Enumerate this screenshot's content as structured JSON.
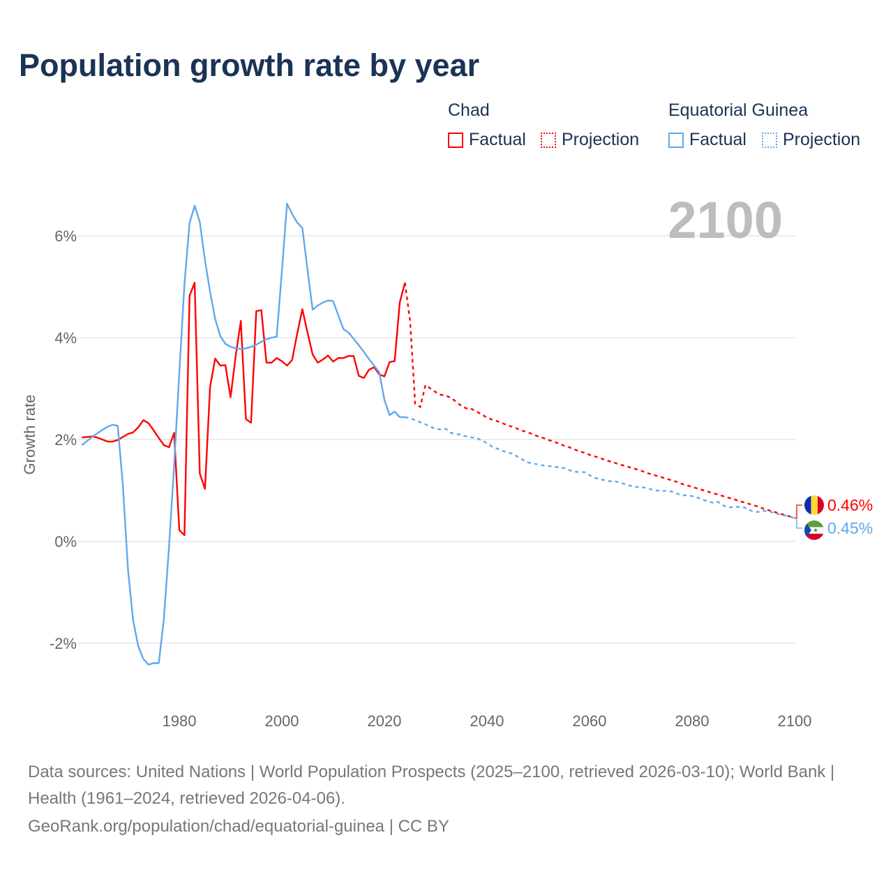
{
  "chart_data": {
    "type": "line",
    "title": "Population growth rate by year",
    "ylabel": "Growth rate",
    "xlabel": "",
    "xlim": [
      1961,
      2100
    ],
    "ylim": [
      -3,
      7
    ],
    "x_ticks": [
      1980,
      2000,
      2020,
      2040,
      2060,
      2080,
      2100
    ],
    "x_tick_labels": [
      "1980",
      "2000",
      "2020",
      "2040",
      "2060",
      "2080",
      "2100"
    ],
    "y_ticks": [
      -2,
      0,
      2,
      4,
      6
    ],
    "y_tick_labels": [
      "-2%",
      "0%",
      "2%",
      "4%",
      "6%"
    ],
    "grid": true,
    "current_year_label": "2100",
    "legend": {
      "placement": "top-right",
      "groups": [
        {
          "name": "Chad",
          "factual": "Factual",
          "projection": "Projection"
        },
        {
          "name": "Equatorial Guinea",
          "factual": "Factual",
          "projection": "Projection"
        }
      ]
    },
    "series": [
      {
        "name": "Chad",
        "color": "#ff0000",
        "end_label": "0.46%",
        "factual_start": 1961,
        "factual": [
          2.04,
          2.05,
          2.06,
          2.04,
          2.0,
          1.96,
          1.96,
          1.99,
          2.05,
          2.11,
          2.14,
          2.24,
          2.38,
          2.32,
          2.18,
          2.03,
          1.89,
          1.85,
          2.13,
          0.22,
          0.12,
          4.82,
          5.08,
          1.33,
          1.03,
          3.03,
          3.59,
          3.45,
          3.46,
          2.83,
          3.65,
          4.33,
          2.4,
          2.33,
          4.52,
          4.54,
          3.51,
          3.51,
          3.6,
          3.54,
          3.45,
          3.56,
          4.08,
          4.56,
          4.1,
          3.67,
          3.51,
          3.57,
          3.65,
          3.53,
          3.6,
          3.6,
          3.64,
          3.64,
          3.25,
          3.21,
          3.37,
          3.42,
          3.28,
          3.24,
          3.52,
          3.54,
          4.69,
          5.08
        ],
        "projection_start": 2024,
        "projection": [
          5.08,
          4.33,
          2.7,
          2.64,
          3.07,
          3.0,
          2.93,
          2.88,
          2.86,
          2.82,
          2.74,
          2.66,
          2.61,
          2.6,
          2.55,
          2.49,
          2.43,
          2.39,
          2.36,
          2.32,
          2.28,
          2.25,
          2.21,
          2.17,
          2.14,
          2.1,
          2.06,
          2.03,
          1.99,
          1.96,
          1.92,
          1.88,
          1.85,
          1.81,
          1.77,
          1.74,
          1.7,
          1.67,
          1.64,
          1.6,
          1.57,
          1.54,
          1.51,
          1.48,
          1.45,
          1.42,
          1.39,
          1.35,
          1.32,
          1.29,
          1.26,
          1.23,
          1.2,
          1.17,
          1.13,
          1.1,
          1.07,
          1.04,
          1.01,
          0.98,
          0.95,
          0.92,
          0.89,
          0.86,
          0.83,
          0.8,
          0.77,
          0.74,
          0.71,
          0.68,
          0.64,
          0.61,
          0.58,
          0.55,
          0.52,
          0.49,
          0.46
        ]
      },
      {
        "name": "Equatorial Guinea",
        "color": "#5fa8ea",
        "end_label": "0.45%",
        "factual_start": 1961,
        "factual": [
          1.89,
          1.97,
          2.05,
          2.12,
          2.19,
          2.25,
          2.29,
          2.27,
          1.1,
          -0.56,
          -1.55,
          -2.06,
          -2.31,
          -2.42,
          -2.39,
          -2.39,
          -1.52,
          -0.1,
          1.5,
          3.3,
          5.05,
          6.25,
          6.59,
          6.27,
          5.52,
          4.9,
          4.37,
          4.03,
          3.88,
          3.82,
          3.79,
          3.78,
          3.79,
          3.82,
          3.86,
          3.92,
          3.97,
          4.0,
          4.02,
          5.3,
          6.63,
          6.43,
          6.26,
          6.15,
          5.33,
          4.55,
          4.63,
          4.69,
          4.73,
          4.72,
          4.44,
          4.17,
          4.1,
          3.98,
          3.85,
          3.72,
          3.58,
          3.45,
          3.32,
          2.78,
          2.48,
          2.55,
          2.44,
          2.44
        ],
        "projection_start": 2024,
        "projection": [
          2.44,
          2.42,
          2.38,
          2.34,
          2.3,
          2.25,
          2.21,
          2.2,
          2.21,
          2.13,
          2.11,
          2.09,
          2.06,
          2.04,
          2.03,
          1.98,
          1.93,
          1.86,
          1.82,
          1.78,
          1.75,
          1.72,
          1.66,
          1.6,
          1.55,
          1.53,
          1.51,
          1.49,
          1.48,
          1.47,
          1.45,
          1.44,
          1.4,
          1.37,
          1.36,
          1.36,
          1.3,
          1.25,
          1.22,
          1.2,
          1.18,
          1.18,
          1.15,
          1.12,
          1.09,
          1.07,
          1.07,
          1.05,
          1.02,
          1.0,
          0.99,
          0.99,
          0.98,
          0.94,
          0.91,
          0.9,
          0.89,
          0.86,
          0.82,
          0.79,
          0.76,
          0.78,
          0.71,
          0.67,
          0.67,
          0.68,
          0.67,
          0.63,
          0.58,
          0.58,
          0.6,
          0.59,
          0.56,
          0.53,
          0.51,
          0.49,
          0.45
        ]
      }
    ]
  },
  "footer": {
    "sources": "Data sources: United Nations | World Population Prospects (2025–2100, retrieved 2026-03-10); World Bank | Health (1961–2024, retrieved 2026-04-06).",
    "link": "GeoRank.org/population/chad/equatorial-guinea | CC BY"
  },
  "icons": {
    "chad_flag": "chad-flag-icon",
    "eq_guinea_flag": "equatorial-guinea-flag-icon"
  }
}
